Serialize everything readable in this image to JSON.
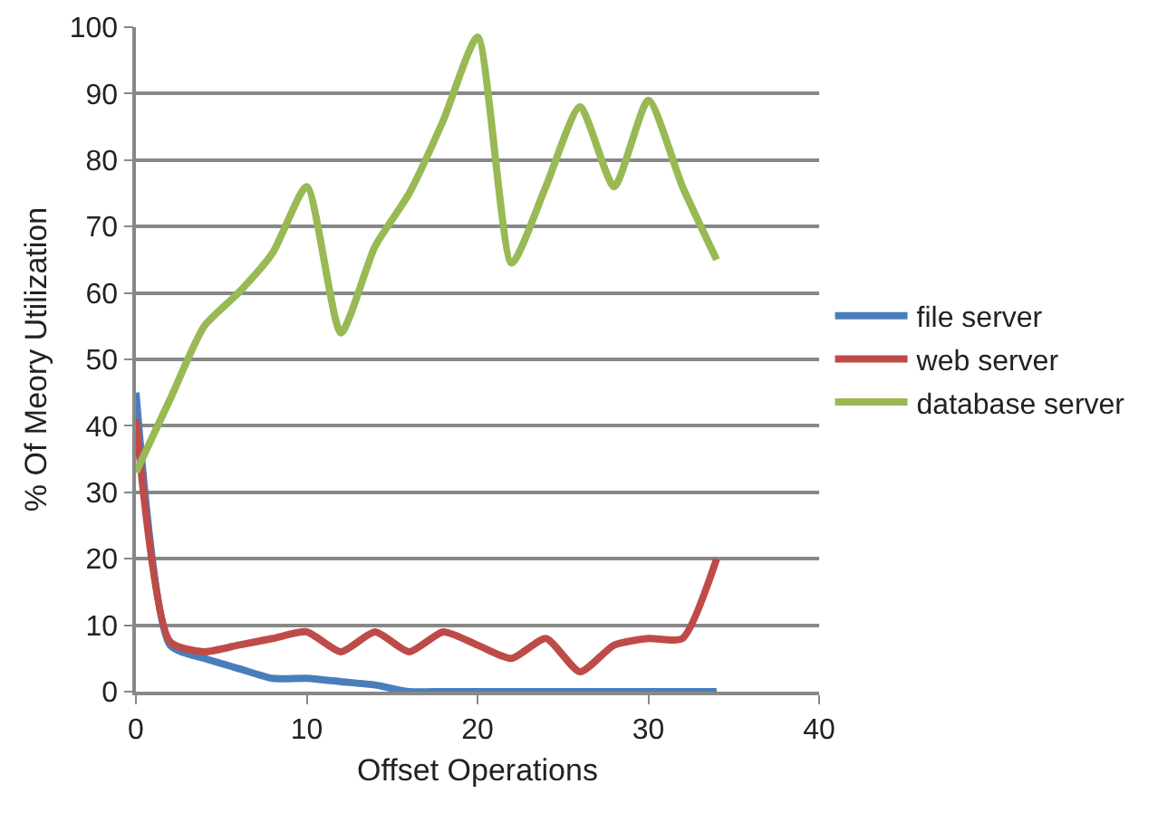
{
  "chart_data": {
    "type": "line",
    "xlabel": "Offset Operations",
    "ylabel": "% Of Meory Utilization",
    "x": [
      0,
      2,
      4,
      6,
      8,
      10,
      12,
      14,
      16,
      18,
      20,
      22,
      24,
      26,
      28,
      30,
      32,
      34
    ],
    "series": [
      {
        "name": "file server",
        "color": "#4a7ebb",
        "values": [
          45,
          7,
          5,
          3.5,
          2,
          2,
          1.5,
          1,
          0,
          0,
          0,
          0,
          0,
          0,
          0,
          0,
          0,
          0
        ]
      },
      {
        "name": "web server",
        "color": "#be4b48",
        "values": [
          41,
          7.5,
          6,
          7,
          8,
          9,
          6,
          9,
          6,
          9,
          7,
          5,
          8,
          3,
          7,
          8,
          8,
          20
        ]
      },
      {
        "name": "database server",
        "color": "#98b954",
        "values": [
          33,
          44,
          55,
          60,
          66,
          76,
          54,
          67,
          75,
          86,
          98.5,
          64.5,
          76,
          88,
          76,
          89,
          76,
          65
        ]
      }
    ],
    "xlim": [
      0,
      40
    ],
    "xticks": [
      0,
      10,
      20,
      30,
      40
    ],
    "ylim": [
      0,
      100
    ],
    "yticks": [
      0,
      10,
      20,
      30,
      40,
      50,
      60,
      70,
      80,
      90,
      100
    ],
    "grid": "y",
    "legend": "right",
    "marker": "none",
    "line_style": "solid"
  }
}
